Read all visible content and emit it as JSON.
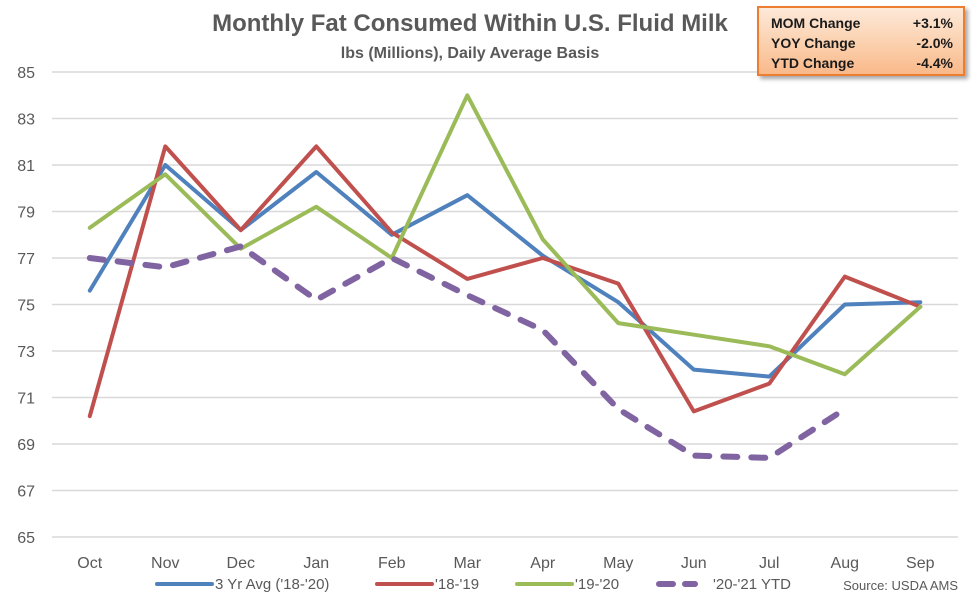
{
  "chart_data": {
    "type": "line",
    "title": "Monthly Fat Consumed Within U.S. Fluid Milk",
    "subtitle": "lbs (Millions), Daily Average Basis",
    "xlabel": "",
    "ylabel": "",
    "categories": [
      "Oct",
      "Nov",
      "Dec",
      "Jan",
      "Feb",
      "Mar",
      "Apr",
      "May",
      "Jun",
      "Jul",
      "Aug",
      "Sep"
    ],
    "ylim": [
      65,
      85
    ],
    "yticks": [
      65,
      67,
      69,
      71,
      73,
      75,
      77,
      79,
      81,
      83,
      85
    ],
    "grid": true,
    "legend_position": "bottom",
    "series": [
      {
        "name": "3 Yr Avg ('18-'20)",
        "color": "#4f81bd",
        "style": "solid",
        "values": [
          75.6,
          81.0,
          78.2,
          80.7,
          78.0,
          79.7,
          77.1,
          75.1,
          72.2,
          71.9,
          75.0,
          75.1
        ]
      },
      {
        "name": "'18-'19",
        "color": "#c0504d",
        "style": "solid",
        "values": [
          70.2,
          81.8,
          78.2,
          81.8,
          78.1,
          76.1,
          77.0,
          75.9,
          70.4,
          71.6,
          76.2,
          74.9
        ]
      },
      {
        "name": "'19-'20",
        "color": "#9bbb59",
        "style": "solid",
        "values": [
          78.3,
          80.6,
          77.4,
          79.2,
          77.0,
          84.0,
          77.8,
          74.2,
          73.7,
          73.2,
          72.0,
          74.9
        ]
      },
      {
        "name": "'20-'21 YTD",
        "color": "#8064a2",
        "style": "dashed",
        "values": [
          77.0,
          76.6,
          77.5,
          75.2,
          77.0,
          75.4,
          73.9,
          70.5,
          68.5,
          68.4,
          70.5,
          null
        ]
      }
    ],
    "source": "Source: USDA AMS",
    "annotation_box": [
      {
        "label": "MOM Change",
        "value": "+3.1%"
      },
      {
        "label": "YOY Change",
        "value": "-2.0%"
      },
      {
        "label": "YTD Change",
        "value": "-4.4%"
      }
    ]
  }
}
